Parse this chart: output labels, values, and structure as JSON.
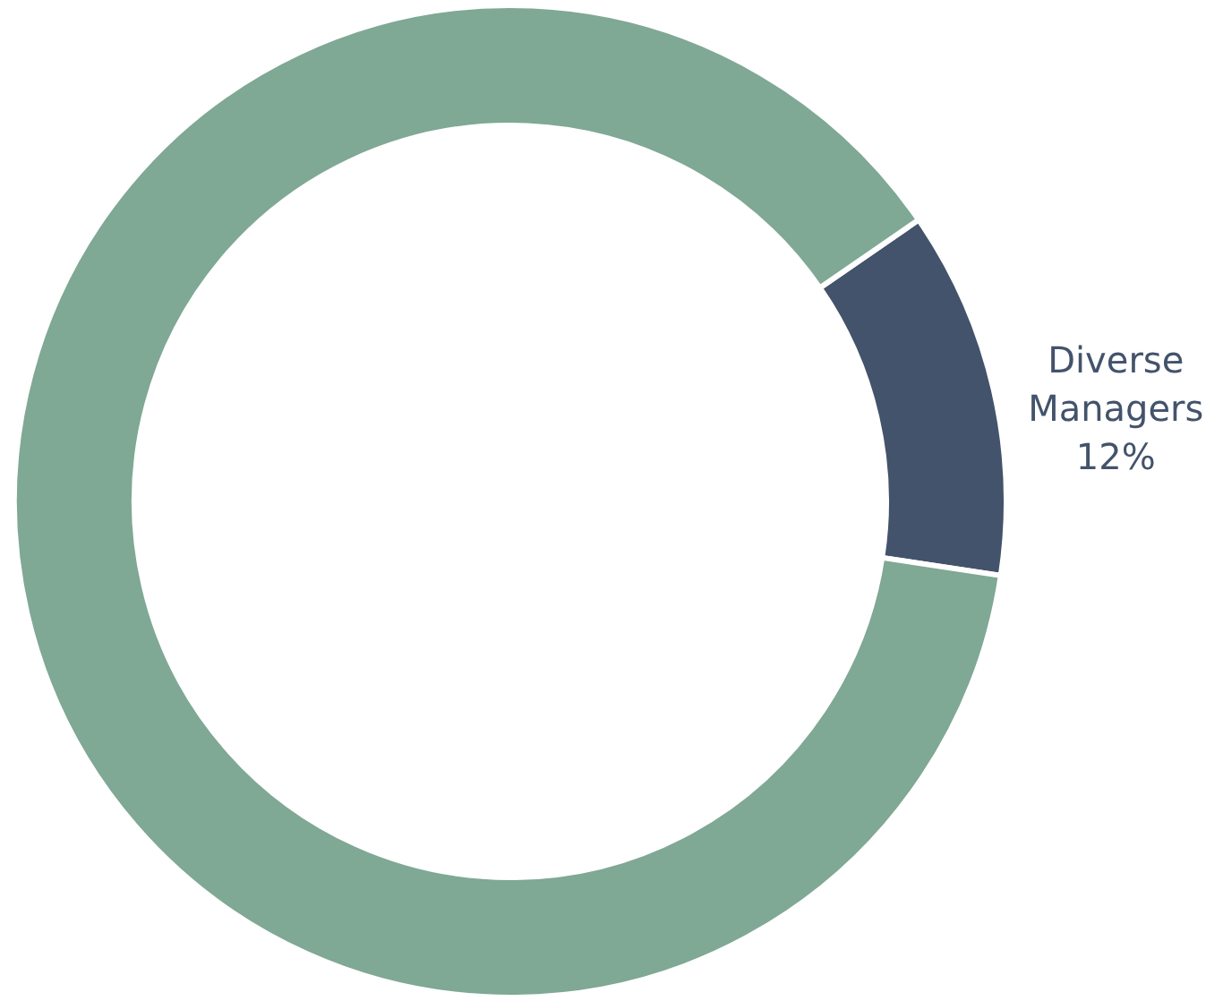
{
  "chart_data": {
    "type": "donut",
    "categories": [
      "Diverse Managers",
      null
    ],
    "values": [
      12,
      88
    ],
    "colors": [
      "#43536b",
      "#7fa895"
    ],
    "value_labels": [
      "12%",
      null
    ]
  }
}
